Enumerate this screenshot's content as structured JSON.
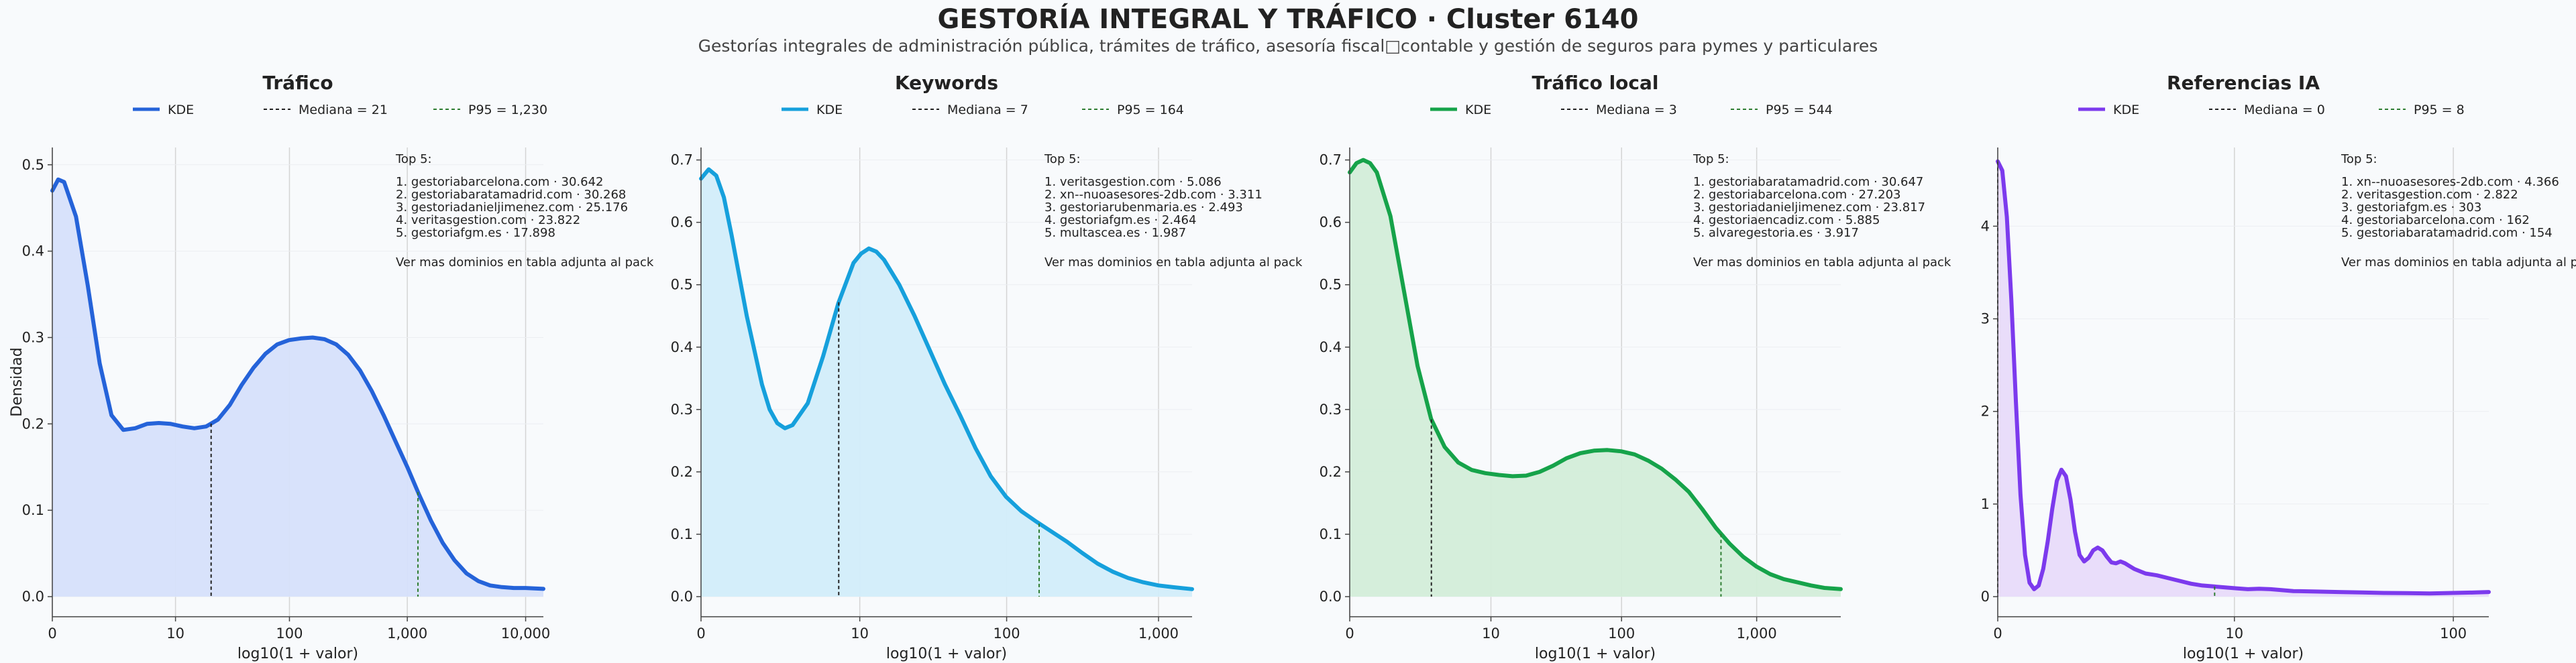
{
  "title": "GESTORÍA INTEGRAL Y TRÁFICO · Cluster 6140",
  "subtitle": "Gestorías integrales de administración pública, trámites de tráfico, asesoría fiscal□contable y gestión de seguros para pymes y particulares",
  "colors": {
    "median_line": "#222222",
    "p95_line": "#2e7d32",
    "grid": "#d4d4d4"
  },
  "chart_data": [
    {
      "type": "area",
      "title": "Tráfico",
      "xlabel": "log10(1 + valor)",
      "ylabel": "Densidad",
      "color": "#2563d9",
      "fill": "#d6e0fb",
      "xlim": [
        0,
        4.15
      ],
      "ylim": [
        0,
        0.52
      ],
      "xticks": [
        0,
        1.041,
        2.004,
        3.0,
        4.0
      ],
      "xtick_labels": [
        "0",
        "10",
        "100",
        "1,000",
        "10,000"
      ],
      "yticks": [
        0,
        0.1,
        0.2,
        0.3,
        0.4,
        0.5
      ],
      "ytick_labels": [
        "0.0",
        "0.1",
        "0.2",
        "0.3",
        "0.4",
        "0.5"
      ],
      "legend": [
        "KDE",
        "Mediana = 21",
        "P95 = 1,230"
      ],
      "median_x": 1.342,
      "p95_x": 3.09,
      "kde": [
        [
          0,
          0.47
        ],
        [
          0.05,
          0.483
        ],
        [
          0.1,
          0.48
        ],
        [
          0.2,
          0.44
        ],
        [
          0.3,
          0.36
        ],
        [
          0.4,
          0.27
        ],
        [
          0.5,
          0.21
        ],
        [
          0.6,
          0.193
        ],
        [
          0.7,
          0.195
        ],
        [
          0.8,
          0.2
        ],
        [
          0.9,
          0.201
        ],
        [
          1.0,
          0.2
        ],
        [
          1.1,
          0.197
        ],
        [
          1.2,
          0.195
        ],
        [
          1.3,
          0.197
        ],
        [
          1.4,
          0.205
        ],
        [
          1.5,
          0.222
        ],
        [
          1.6,
          0.245
        ],
        [
          1.7,
          0.265
        ],
        [
          1.8,
          0.281
        ],
        [
          1.9,
          0.292
        ],
        [
          2.0,
          0.297
        ],
        [
          2.1,
          0.299
        ],
        [
          2.2,
          0.3
        ],
        [
          2.3,
          0.298
        ],
        [
          2.4,
          0.292
        ],
        [
          2.5,
          0.28
        ],
        [
          2.6,
          0.262
        ],
        [
          2.7,
          0.238
        ],
        [
          2.8,
          0.21
        ],
        [
          2.9,
          0.18
        ],
        [
          3.0,
          0.15
        ],
        [
          3.1,
          0.118
        ],
        [
          3.2,
          0.088
        ],
        [
          3.3,
          0.062
        ],
        [
          3.4,
          0.042
        ],
        [
          3.5,
          0.027
        ],
        [
          3.6,
          0.018
        ],
        [
          3.7,
          0.013
        ],
        [
          3.8,
          0.011
        ],
        [
          3.9,
          0.01
        ],
        [
          4.0,
          0.01
        ],
        [
          4.15,
          0.009
        ]
      ],
      "top5": [
        "Top 5:",
        "1. gestoriabarcelona.com · 30.642",
        "2. gestoriabaratamadrid.com · 30.268",
        "3. gestoriadanieljimenez.com · 25.176",
        "4. veritasgestion.com · 23.822",
        "5. gestoriafgm.es · 17.898"
      ],
      "note": "Ver mas dominios en tabla adjunta al pack"
    },
    {
      "type": "area",
      "title": "Keywords",
      "xlabel": "log10(1 + valor)",
      "ylabel": "",
      "color": "#16a0dc",
      "fill": "#d2edfa",
      "xlim": [
        0,
        3.22
      ],
      "ylim": [
        0,
        0.72
      ],
      "xticks": [
        0,
        1.041,
        2.004,
        3.0
      ],
      "xtick_labels": [
        "0",
        "10",
        "100",
        "1,000"
      ],
      "yticks": [
        0,
        0.1,
        0.2,
        0.3,
        0.4,
        0.5,
        0.6,
        0.7
      ],
      "ytick_labels": [
        "0.0",
        "0.1",
        "0.2",
        "0.3",
        "0.4",
        "0.5",
        "0.6",
        "0.7"
      ],
      "legend": [
        "KDE",
        "Mediana = 7",
        "P95 = 164"
      ],
      "median_x": 0.903,
      "p95_x": 2.217,
      "kde": [
        [
          0,
          0.67
        ],
        [
          0.05,
          0.685
        ],
        [
          0.1,
          0.675
        ],
        [
          0.15,
          0.64
        ],
        [
          0.2,
          0.58
        ],
        [
          0.3,
          0.45
        ],
        [
          0.4,
          0.34
        ],
        [
          0.45,
          0.3
        ],
        [
          0.5,
          0.278
        ],
        [
          0.55,
          0.27
        ],
        [
          0.6,
          0.275
        ],
        [
          0.7,
          0.31
        ],
        [
          0.8,
          0.385
        ],
        [
          0.9,
          0.47
        ],
        [
          1.0,
          0.535
        ],
        [
          1.05,
          0.55
        ],
        [
          1.1,
          0.558
        ],
        [
          1.15,
          0.553
        ],
        [
          1.2,
          0.54
        ],
        [
          1.3,
          0.5
        ],
        [
          1.4,
          0.45
        ],
        [
          1.5,
          0.395
        ],
        [
          1.6,
          0.34
        ],
        [
          1.7,
          0.29
        ],
        [
          1.8,
          0.238
        ],
        [
          1.9,
          0.193
        ],
        [
          2.0,
          0.16
        ],
        [
          2.1,
          0.137
        ],
        [
          2.2,
          0.12
        ],
        [
          2.3,
          0.104
        ],
        [
          2.4,
          0.088
        ],
        [
          2.5,
          0.07
        ],
        [
          2.6,
          0.053
        ],
        [
          2.7,
          0.04
        ],
        [
          2.8,
          0.03
        ],
        [
          2.9,
          0.023
        ],
        [
          3.0,
          0.018
        ],
        [
          3.1,
          0.015
        ],
        [
          3.22,
          0.012
        ]
      ],
      "top5": [
        "Top 5:",
        "1. veritasgestion.com · 5.086",
        "2. xn--nuoasesores-2db.com · 3.311",
        "3. gestoriarubenmaria.es · 2.493",
        "4. gestoriafgm.es · 2.464",
        "5. multascea.es · 1.987"
      ],
      "note": "Ver mas dominios en tabla adjunta al pack"
    },
    {
      "type": "area",
      "title": "Tráfico local",
      "xlabel": "log10(1 + valor)",
      "ylabel": "",
      "color": "#16a34a",
      "fill": "#d3edd9",
      "xlim": [
        0,
        3.62
      ],
      "ylim": [
        0,
        0.72
      ],
      "xticks": [
        0,
        1.041,
        2.004,
        3.0
      ],
      "xtick_labels": [
        "0",
        "10",
        "100",
        "1,000"
      ],
      "yticks": [
        0,
        0.1,
        0.2,
        0.3,
        0.4,
        0.5,
        0.6,
        0.7
      ],
      "ytick_labels": [
        "0.0",
        "0.1",
        "0.2",
        "0.3",
        "0.4",
        "0.5",
        "0.6",
        "0.7"
      ],
      "legend": [
        "KDE",
        "Mediana = 3",
        "P95 = 544"
      ],
      "median_x": 0.602,
      "p95_x": 2.737,
      "kde": [
        [
          0,
          0.68
        ],
        [
          0.05,
          0.695
        ],
        [
          0.1,
          0.7
        ],
        [
          0.15,
          0.695
        ],
        [
          0.2,
          0.68
        ],
        [
          0.3,
          0.61
        ],
        [
          0.4,
          0.49
        ],
        [
          0.5,
          0.37
        ],
        [
          0.6,
          0.285
        ],
        [
          0.7,
          0.24
        ],
        [
          0.8,
          0.215
        ],
        [
          0.9,
          0.203
        ],
        [
          1.0,
          0.198
        ],
        [
          1.1,
          0.195
        ],
        [
          1.2,
          0.193
        ],
        [
          1.3,
          0.194
        ],
        [
          1.4,
          0.2
        ],
        [
          1.5,
          0.21
        ],
        [
          1.6,
          0.222
        ],
        [
          1.7,
          0.23
        ],
        [
          1.8,
          0.234
        ],
        [
          1.9,
          0.235
        ],
        [
          2.0,
          0.233
        ],
        [
          2.1,
          0.228
        ],
        [
          2.2,
          0.218
        ],
        [
          2.3,
          0.205
        ],
        [
          2.4,
          0.188
        ],
        [
          2.5,
          0.168
        ],
        [
          2.6,
          0.14
        ],
        [
          2.7,
          0.11
        ],
        [
          2.8,
          0.085
        ],
        [
          2.9,
          0.064
        ],
        [
          3.0,
          0.048
        ],
        [
          3.1,
          0.036
        ],
        [
          3.2,
          0.028
        ],
        [
          3.3,
          0.023
        ],
        [
          3.4,
          0.018
        ],
        [
          3.5,
          0.014
        ],
        [
          3.62,
          0.012
        ]
      ],
      "top5": [
        "Top 5:",
        "1. gestoriabaratamadrid.com · 30.647",
        "2. gestoriabarcelona.com · 27.203",
        "3. gestoriadanieljimenez.com · 23.817",
        "4. gestoriaencadiz.com · 5.885",
        "5. alvaregestoria.es · 3.917"
      ],
      "note": "Ver mas dominios en tabla adjunta al pack"
    },
    {
      "type": "area",
      "title": "Referencias IA",
      "xlabel": "log10(1 + valor)",
      "ylabel": "",
      "color": "#7c3aed",
      "fill": "#e8dbfa",
      "xlim": [
        0,
        2.16
      ],
      "ylim": [
        0,
        4.85
      ],
      "xticks": [
        0,
        1.041,
        2.004
      ],
      "xtick_labels": [
        "0",
        "10",
        "100"
      ],
      "yticks": [
        0,
        1,
        2,
        3,
        4
      ],
      "ytick_labels": [
        "0",
        "1",
        "2",
        "3",
        "4"
      ],
      "legend": [
        "KDE",
        "Mediana = 0",
        "P95 = 8"
      ],
      "median_x": 0.0,
      "p95_x": 0.954,
      "kde": [
        [
          0,
          4.7
        ],
        [
          0.02,
          4.6
        ],
        [
          0.04,
          4.1
        ],
        [
          0.06,
          3.2
        ],
        [
          0.08,
          2.1
        ],
        [
          0.1,
          1.1
        ],
        [
          0.12,
          0.45
        ],
        [
          0.14,
          0.15
        ],
        [
          0.16,
          0.08
        ],
        [
          0.18,
          0.12
        ],
        [
          0.2,
          0.3
        ],
        [
          0.22,
          0.6
        ],
        [
          0.24,
          0.95
        ],
        [
          0.26,
          1.25
        ],
        [
          0.28,
          1.37
        ],
        [
          0.3,
          1.3
        ],
        [
          0.32,
          1.05
        ],
        [
          0.34,
          0.7
        ],
        [
          0.36,
          0.45
        ],
        [
          0.38,
          0.38
        ],
        [
          0.4,
          0.42
        ],
        [
          0.42,
          0.5
        ],
        [
          0.44,
          0.53
        ],
        [
          0.46,
          0.5
        ],
        [
          0.48,
          0.43
        ],
        [
          0.5,
          0.37
        ],
        [
          0.52,
          0.36
        ],
        [
          0.54,
          0.38
        ],
        [
          0.56,
          0.36
        ],
        [
          0.6,
          0.3
        ],
        [
          0.65,
          0.25
        ],
        [
          0.7,
          0.23
        ],
        [
          0.75,
          0.2
        ],
        [
          0.8,
          0.17
        ],
        [
          0.85,
          0.14
        ],
        [
          0.9,
          0.12
        ],
        [
          0.95,
          0.11
        ],
        [
          1.0,
          0.1
        ],
        [
          1.05,
          0.09
        ],
        [
          1.1,
          0.08
        ],
        [
          1.15,
          0.085
        ],
        [
          1.2,
          0.08
        ],
        [
          1.3,
          0.06
        ],
        [
          1.4,
          0.055
        ],
        [
          1.5,
          0.05
        ],
        [
          1.6,
          0.045
        ],
        [
          1.7,
          0.04
        ],
        [
          1.8,
          0.038
        ],
        [
          1.9,
          0.035
        ],
        [
          2.0,
          0.04
        ],
        [
          2.1,
          0.045
        ],
        [
          2.16,
          0.05
        ]
      ],
      "top5": [
        "Top 5:",
        "1. xn--nuoasesores-2db.com · 4.366",
        "2. veritasgestion.com · 2.822",
        "3. gestoriafgm.es · 303",
        "4. gestoriabarcelona.com · 162",
        "5. gestoriabaratamadrid.com · 154"
      ],
      "note": "Ver mas dominios en tabla adjunta al pack"
    }
  ]
}
